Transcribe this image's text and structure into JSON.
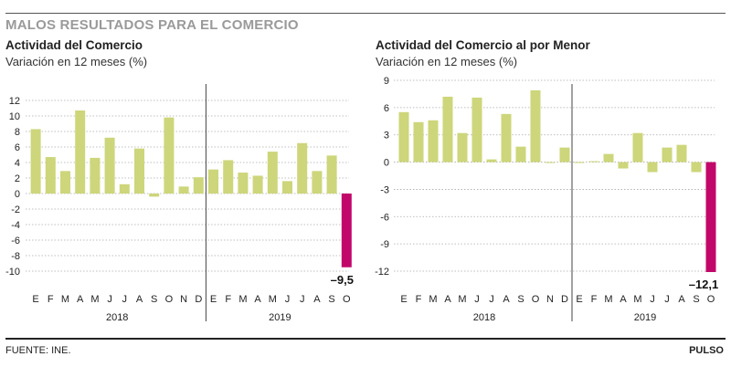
{
  "header": {
    "headline": "MALOS RESULTADOS PARA EL COMERCIO"
  },
  "footer": {
    "source": "FUENTE: INE.",
    "brand": "PULSO"
  },
  "colors": {
    "bar": "#cdd67a",
    "highlight": "#c2076a",
    "grid": "#aaaaaa",
    "separator": "#444444"
  },
  "chart_data": [
    {
      "type": "bar",
      "title": "Actividad del Comercio",
      "subtitle": "Variación en 12 meses (%)",
      "categories": [
        "E",
        "F",
        "M",
        "A",
        "M",
        "J",
        "J",
        "A",
        "S",
        "O",
        "N",
        "D",
        "E",
        "F",
        "M",
        "A",
        "M",
        "J",
        "J",
        "A",
        "S",
        "O"
      ],
      "groups": [
        {
          "label": "2018",
          "count": 12
        },
        {
          "label": "2019",
          "count": 10
        }
      ],
      "values": [
        8.3,
        4.7,
        2.9,
        10.7,
        4.6,
        7.2,
        1.2,
        5.8,
        -0.4,
        9.8,
        0.9,
        2.1,
        3.1,
        4.3,
        2.7,
        2.3,
        5.4,
        1.6,
        6.5,
        2.9,
        4.9,
        -9.5
      ],
      "highlight_index": 21,
      "highlight_label": "–9,5",
      "ylim": [
        -10,
        12
      ],
      "yticks": [
        12,
        10,
        8,
        6,
        4,
        2,
        0,
        -2,
        -4,
        -6,
        -8,
        -10
      ],
      "grid": true
    },
    {
      "type": "bar",
      "title": "Actividad del Comercio al por Menor",
      "subtitle": "Variación en 12 meses (%)",
      "categories": [
        "E",
        "F",
        "M",
        "A",
        "M",
        "J",
        "J",
        "A",
        "S",
        "O",
        "N",
        "D",
        "E",
        "F",
        "M",
        "A",
        "M",
        "J",
        "J",
        "A",
        "S",
        "O"
      ],
      "groups": [
        {
          "label": "2018",
          "count": 12
        },
        {
          "label": "2019",
          "count": 10
        }
      ],
      "values": [
        5.5,
        4.4,
        4.6,
        7.2,
        3.2,
        7.1,
        0.3,
        5.3,
        1.7,
        7.9,
        -0.1,
        1.6,
        -0.1,
        0.1,
        0.9,
        -0.7,
        3.2,
        -1.1,
        1.6,
        1.9,
        -1.1,
        -12.1
      ],
      "highlight_index": 21,
      "highlight_label": "–12,1",
      "ylim": [
        -12.5,
        9
      ],
      "yticks": [
        9,
        6,
        3,
        0,
        -3,
        -6,
        -9,
        -12
      ],
      "grid": true
    }
  ]
}
